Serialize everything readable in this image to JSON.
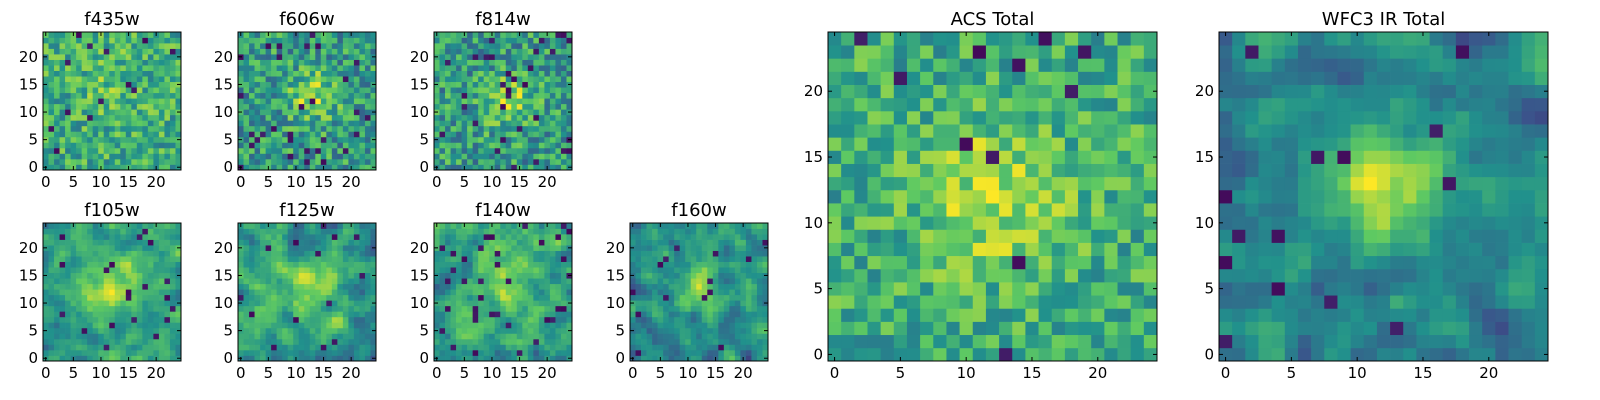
{
  "figure": {
    "colormap": [
      "#440154",
      "#3b528b",
      "#21918c",
      "#5ec962",
      "#fde725"
    ]
  },
  "chart_data": [
    {
      "type": "heatmap",
      "title": "f435w",
      "grid_size": 25,
      "xticks": [
        0,
        5,
        10,
        15,
        20
      ],
      "yticks": [
        0,
        5,
        10,
        15,
        20
      ],
      "seed": 11,
      "texture": "fine",
      "blob": {
        "cx": 12,
        "cy": 15,
        "r": 4,
        "amp": 0.1
      },
      "base": 0.62,
      "noise": 0.22,
      "dark_fraction": 0.03
    },
    {
      "type": "heatmap",
      "title": "f606w",
      "grid_size": 25,
      "xticks": [
        0,
        5,
        10,
        15,
        20
      ],
      "yticks": [
        0,
        5,
        10,
        15,
        20
      ],
      "seed": 23,
      "texture": "fine",
      "blob": {
        "cx": 13,
        "cy": 13,
        "r": 3,
        "amp": 0.3
      },
      "base": 0.55,
      "noise": 0.24,
      "dark_fraction": 0.04
    },
    {
      "type": "heatmap",
      "title": "f814w",
      "grid_size": 25,
      "xticks": [
        0,
        5,
        10,
        15,
        20
      ],
      "yticks": [
        0,
        5,
        10,
        15,
        20
      ],
      "seed": 37,
      "texture": "fine",
      "blob": {
        "cx": 13,
        "cy": 12,
        "r": 3,
        "amp": 0.3
      },
      "base": 0.55,
      "noise": 0.24,
      "dark_fraction": 0.05
    },
    {
      "type": "heatmap",
      "title": "f105w",
      "grid_size": 25,
      "xticks": [
        0,
        5,
        10,
        15,
        20
      ],
      "yticks": [
        0,
        5,
        10,
        15,
        20
      ],
      "seed": 41,
      "texture": "smooth",
      "blob": {
        "cx": 12,
        "cy": 13,
        "r": 4,
        "amp": 0.35
      },
      "base": 0.55,
      "noise": 0.22,
      "dark_fraction": 0.03
    },
    {
      "type": "heatmap",
      "title": "f125w",
      "grid_size": 25,
      "xticks": [
        0,
        5,
        10,
        15,
        20
      ],
      "yticks": [
        0,
        5,
        10,
        15,
        20
      ],
      "seed": 53,
      "texture": "smooth",
      "blob": {
        "cx": 13,
        "cy": 13,
        "r": 4,
        "amp": 0.25
      },
      "base": 0.55,
      "noise": 0.25,
      "dark_fraction": 0.03
    },
    {
      "type": "heatmap",
      "title": "f140w",
      "grid_size": 25,
      "xticks": [
        0,
        5,
        10,
        15,
        20
      ],
      "yticks": [
        0,
        5,
        10,
        15,
        20
      ],
      "seed": 67,
      "texture": "smooth",
      "blob": {
        "cx": 12,
        "cy": 15,
        "r": 4,
        "amp": 0.22
      },
      "base": 0.58,
      "noise": 0.25,
      "dark_fraction": 0.04
    },
    {
      "type": "heatmap",
      "title": "f160w",
      "grid_size": 25,
      "xticks": [
        0,
        5,
        10,
        15,
        20
      ],
      "yticks": [
        0,
        5,
        10,
        15,
        20
      ],
      "seed": 79,
      "texture": "smooth",
      "blob": {
        "cx": 12,
        "cy": 13,
        "r": 3,
        "amp": 0.35
      },
      "base": 0.5,
      "noise": 0.24,
      "dark_fraction": 0.03
    },
    {
      "type": "heatmap",
      "title": "ACS Total",
      "grid_size": 25,
      "xticks": [
        0,
        5,
        10,
        15,
        20
      ],
      "yticks": [
        0,
        5,
        10,
        15,
        20
      ],
      "seed": 97,
      "texture": "fine",
      "blob": {
        "cx": 12,
        "cy": 12,
        "r": 4,
        "amp": 0.25
      },
      "base": 0.62,
      "noise": 0.2,
      "dark_fraction": 0.02
    },
    {
      "type": "heatmap",
      "title": "WFC3 IR Total",
      "grid_size": 25,
      "xticks": [
        0,
        5,
        10,
        15,
        20
      ],
      "yticks": [
        0,
        5,
        10,
        15,
        20
      ],
      "seed": 113,
      "texture": "smooth",
      "blob": {
        "cx": 12,
        "cy": 13,
        "r": 3,
        "amp": 0.45
      },
      "base": 0.45,
      "noise": 0.22,
      "dark_fraction": 0.03
    }
  ]
}
